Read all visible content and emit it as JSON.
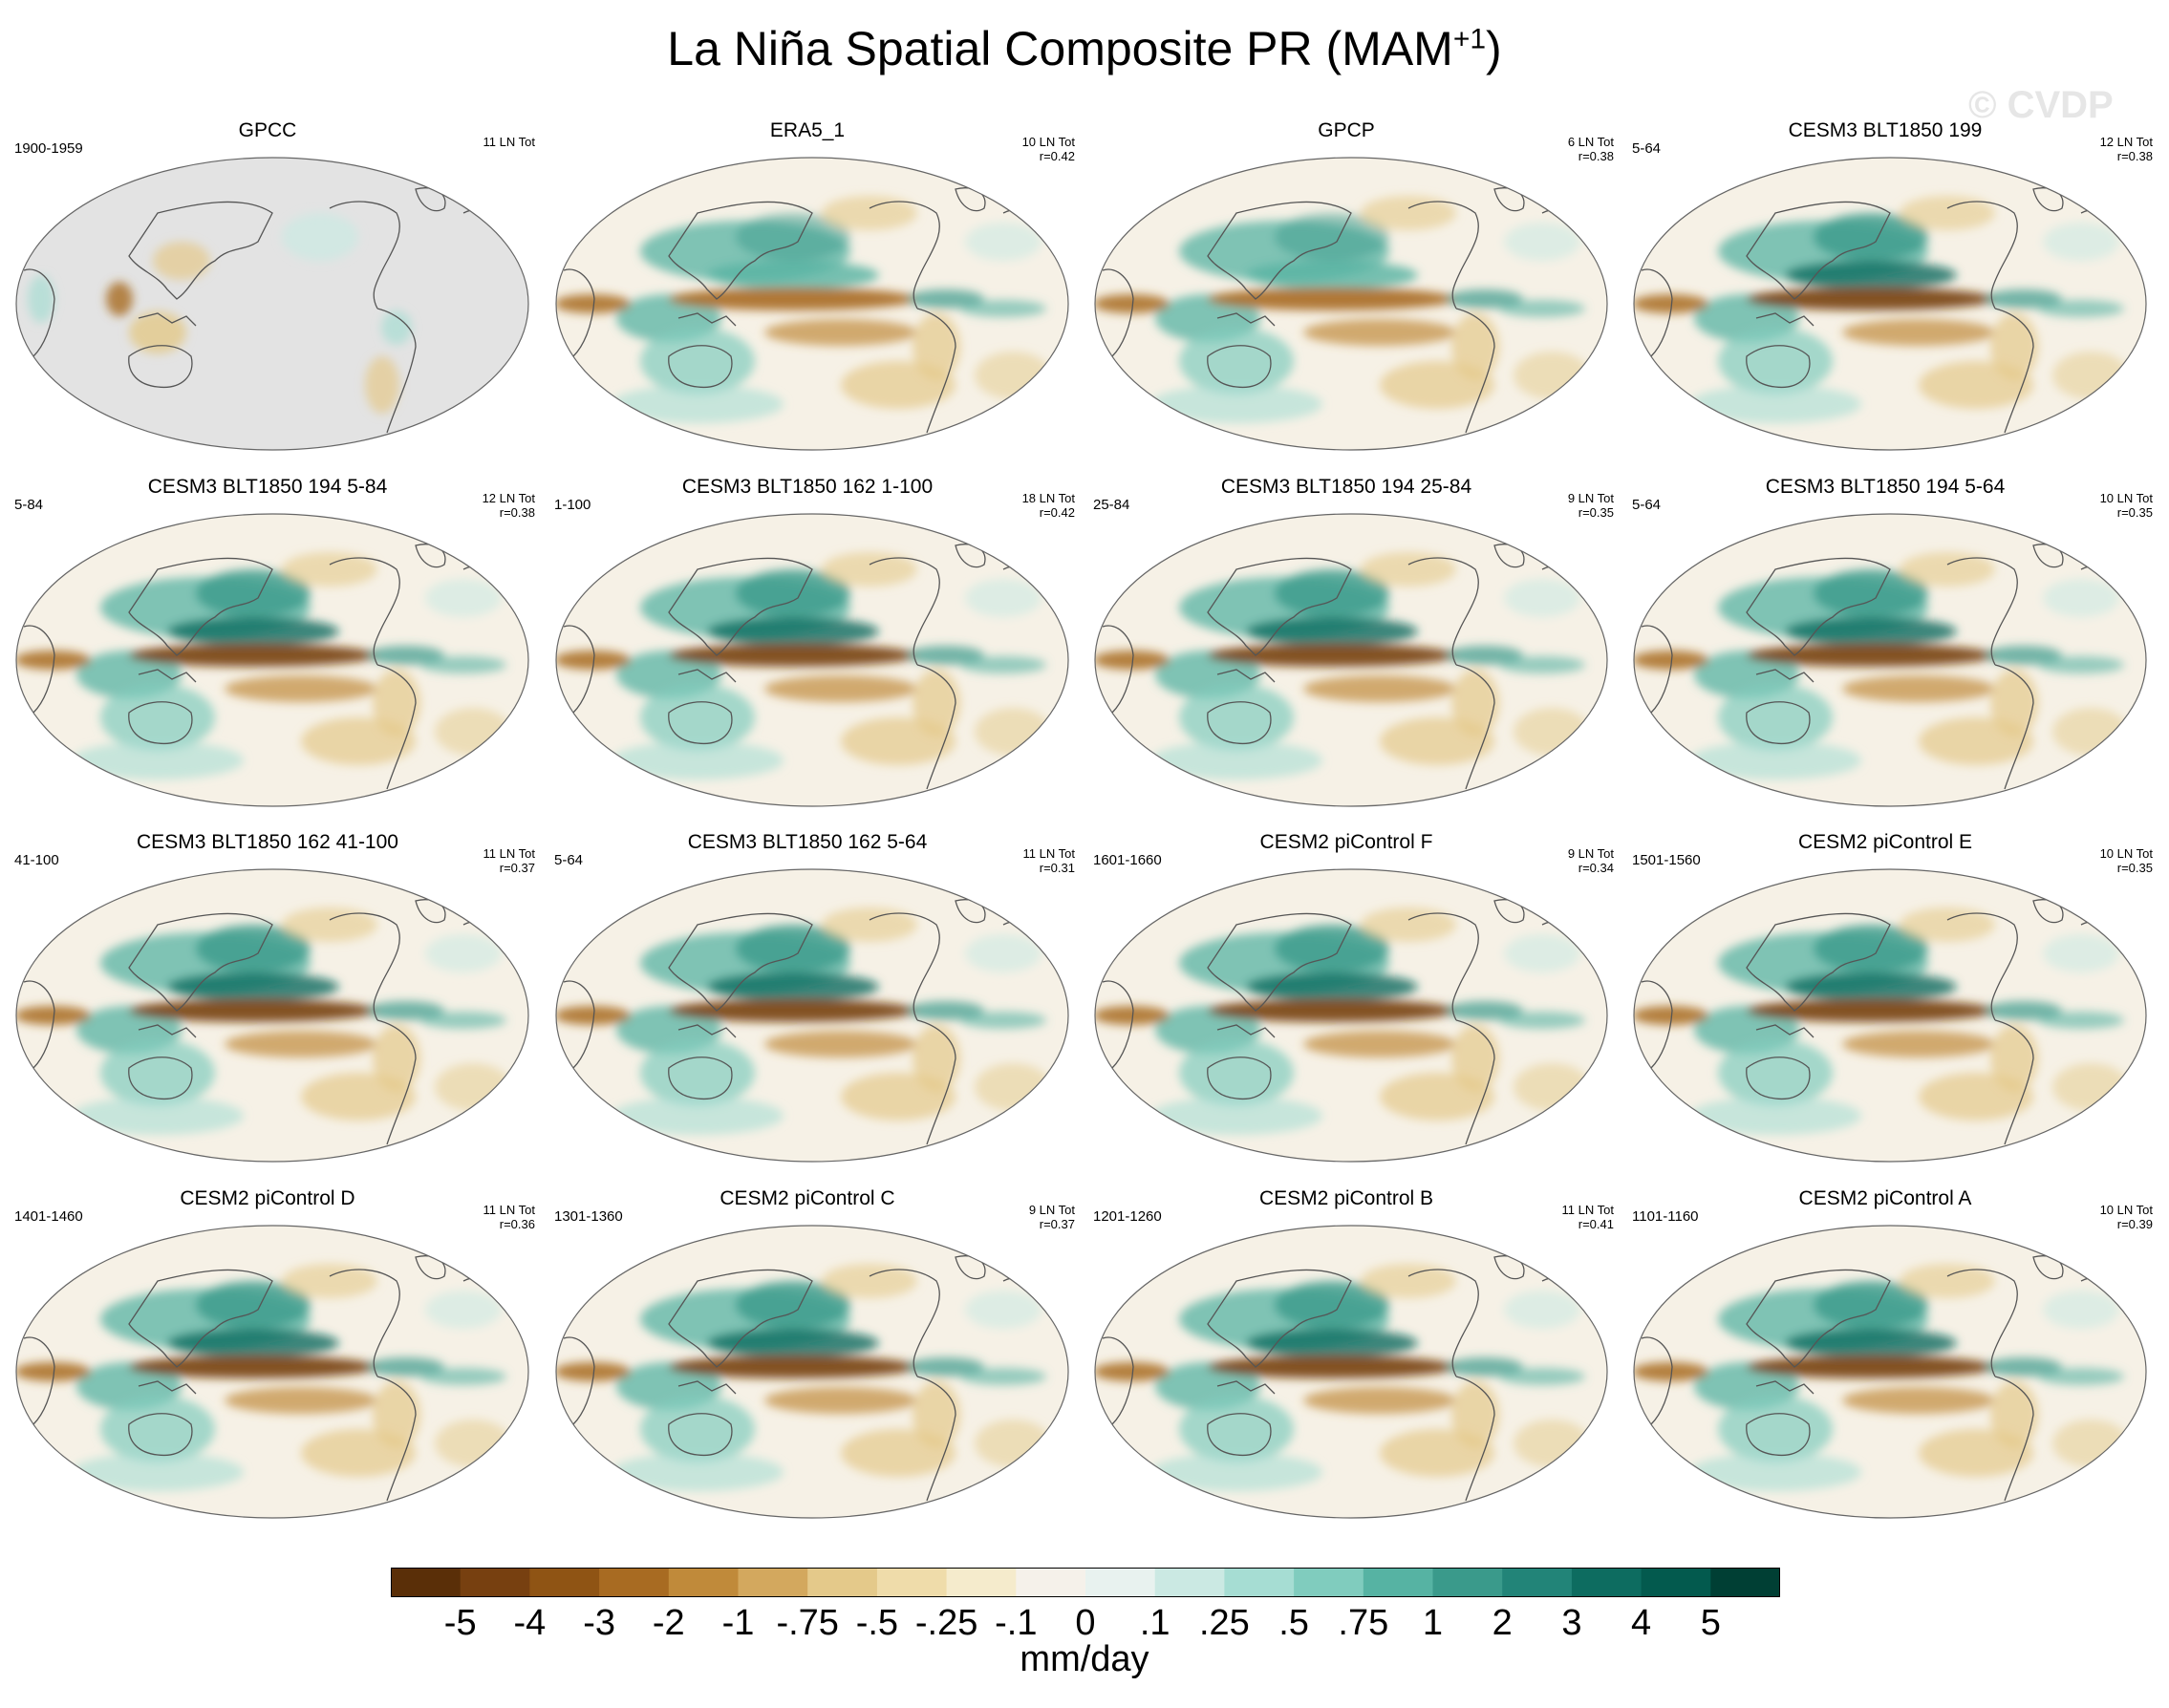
{
  "title": {
    "main": "La Niña Spatial Composite PR (MAM",
    "sup": "+1",
    "close": ")"
  },
  "watermark": "© CVDP",
  "panels": [
    {
      "title": "GPCC",
      "years": "1900-1959",
      "count": "11 LN Tot",
      "r": "",
      "style": "obs_gray"
    },
    {
      "title": "ERA5_1",
      "years": "",
      "count": "10 LN Tot",
      "r": "r=0.42",
      "style": "era5"
    },
    {
      "title": "GPCP",
      "years": "",
      "count": "6 LN Tot",
      "r": "r=0.38",
      "style": "gpcp"
    },
    {
      "title": "CESM3 BLT1850 199",
      "years": "5-64",
      "count": "12 LN Tot",
      "r": "r=0.38",
      "style": "model"
    },
    {
      "title": "CESM3 BLT1850 194 5-84",
      "years": "5-84",
      "count": "12 LN Tot",
      "r": "r=0.38",
      "style": "model"
    },
    {
      "title": "CESM3 BLT1850 162 1-100",
      "years": "1-100",
      "count": "18 LN Tot",
      "r": "r=0.42",
      "style": "model"
    },
    {
      "title": "CESM3 BLT1850 194 25-84",
      "years": "25-84",
      "count": "9 LN Tot",
      "r": "r=0.35",
      "style": "model"
    },
    {
      "title": "CESM3 BLT1850 194 5-64",
      "years": "5-64",
      "count": "10 LN Tot",
      "r": "r=0.35",
      "style": "model"
    },
    {
      "title": "CESM3 BLT1850 162 41-100",
      "years": "41-100",
      "count": "11 LN Tot",
      "r": "r=0.37",
      "style": "model"
    },
    {
      "title": "CESM3 BLT1850 162 5-64",
      "years": "5-64",
      "count": "11 LN Tot",
      "r": "r=0.31",
      "style": "model"
    },
    {
      "title": "CESM2 piControl F",
      "years": "1601-1660",
      "count": "9 LN Tot",
      "r": "r=0.34",
      "style": "model"
    },
    {
      "title": "CESM2 piControl E",
      "years": "1501-1560",
      "count": "10 LN Tot",
      "r": "r=0.35",
      "style": "model"
    },
    {
      "title": "CESM2 piControl D",
      "years": "1401-1460",
      "count": "11 LN Tot",
      "r": "r=0.36",
      "style": "model"
    },
    {
      "title": "CESM2 piControl C",
      "years": "1301-1360",
      "count": "9 LN Tot",
      "r": "r=0.37",
      "style": "model"
    },
    {
      "title": "CESM2 piControl B",
      "years": "1201-1260",
      "count": "11 LN Tot",
      "r": "r=0.41",
      "style": "model"
    },
    {
      "title": "CESM2 piControl A",
      "years": "1101-1160",
      "count": "10 LN Tot",
      "r": "r=0.39",
      "style": "model"
    }
  ],
  "colorbar": {
    "colors": [
      "#5a2f08",
      "#774010",
      "#8f5414",
      "#a86b22",
      "#c08a3a",
      "#d3a85e",
      "#e4c98a",
      "#efdcaa",
      "#f5ebcc",
      "#f5f1ea",
      "#e8f2ef",
      "#cbe9e3",
      "#a6ddd3",
      "#80ccbe",
      "#56b3a3",
      "#3a9a8b",
      "#228478",
      "#0d6c60",
      "#035a4e",
      "#003f34"
    ],
    "labels": [
      "-5",
      "-4",
      "-3",
      "-2",
      "-1",
      "-.75",
      "-.5",
      "-.25",
      "-.1",
      "0",
      ".1",
      ".25",
      ".5",
      ".75",
      "1",
      "2",
      "3",
      "4",
      "5"
    ],
    "units": "mm/day"
  }
}
